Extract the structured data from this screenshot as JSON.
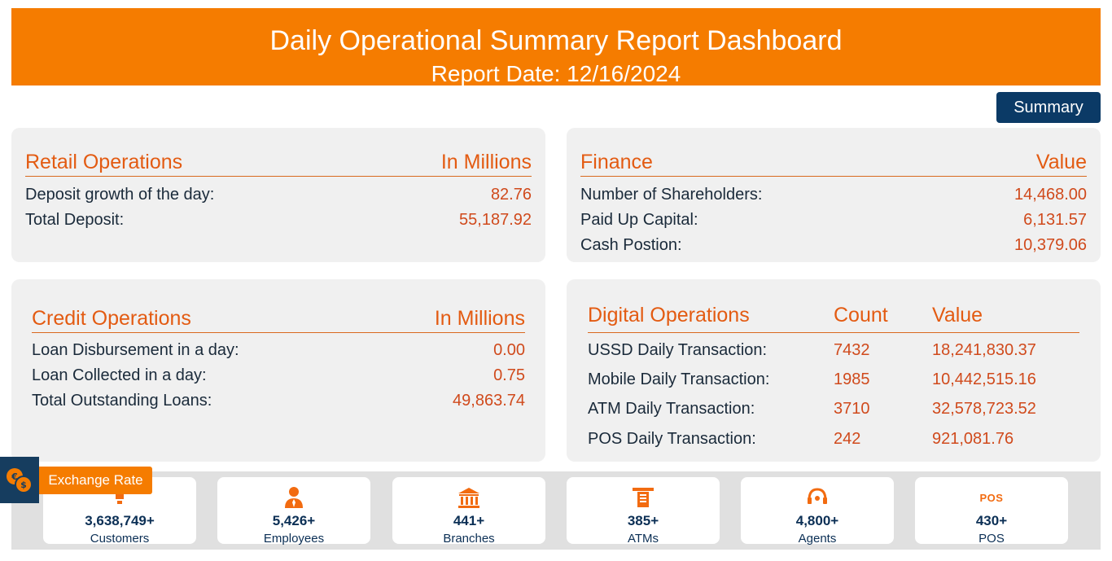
{
  "header": {
    "title": "Daily Operational Summary Report Dashboard",
    "report_date": "Report Date: 12/16/2024"
  },
  "summary_button": "Summary",
  "retail": {
    "title": "Retail Operations",
    "unit": "In Millions",
    "rows": [
      {
        "label": "Deposit growth of the day:",
        "value": "82.76"
      },
      {
        "label": "Total Deposit:",
        "value": "55,187.92"
      }
    ]
  },
  "finance": {
    "title": "Finance",
    "unit": "Value",
    "rows": [
      {
        "label": "Number of Shareholders:",
        "value": "14,468.00"
      },
      {
        "label": "Paid Up Capital:",
        "value": "6,131.57"
      },
      {
        "label": "Cash Postion:",
        "value": "10,379.06"
      }
    ]
  },
  "credit": {
    "title": "Credit Operations",
    "unit": "In Millions",
    "rows": [
      {
        "label": "Loan Disbursement in a day:",
        "value": "0.00"
      },
      {
        "label": "Loan Collected in a day:",
        "value": "0.75"
      },
      {
        "label": "Total Outstanding Loans:",
        "value": "49,863.74"
      }
    ]
  },
  "digital": {
    "title": "Digital Operations",
    "count_header": "Count",
    "value_header": "Value",
    "rows": [
      {
        "label": "USSD Daily Transaction:",
        "count": "7432",
        "value": "18,241,830.37"
      },
      {
        "label": "Mobile Daily Transaction:",
        "count": "1985",
        "value": "10,442,515.16"
      },
      {
        "label": "ATM Daily Transaction:",
        "count": "3710",
        "value": "32,578,723.52"
      },
      {
        "label": "POS Daily Transaction:",
        "count": "242",
        "value": "921,081.76"
      }
    ]
  },
  "exchange_rate": {
    "label": "Exchange Rate",
    "icon": "currency-exchange-icon"
  },
  "stats": [
    {
      "icon": "customers-icon",
      "number": "3,638,749+",
      "caption": "Customers"
    },
    {
      "icon": "employee-icon",
      "number": "5,426+",
      "caption": "Employees"
    },
    {
      "icon": "bank-building-icon",
      "number": "441+",
      "caption": "Branches"
    },
    {
      "icon": "atm-icon",
      "number": "385+",
      "caption": "ATMs"
    },
    {
      "icon": "headset-icon",
      "number": "4,800+",
      "caption": "Agents"
    },
    {
      "icon": "pos-icon",
      "icon_text": "POS",
      "number": "430+",
      "caption": "POS"
    }
  ],
  "colors": {
    "header_orange": "#f57c00",
    "accent_text": "#e35b12",
    "value_text": "#d04a1c",
    "navy": "#0b3a66",
    "card_bg": "#f0f0f0"
  }
}
